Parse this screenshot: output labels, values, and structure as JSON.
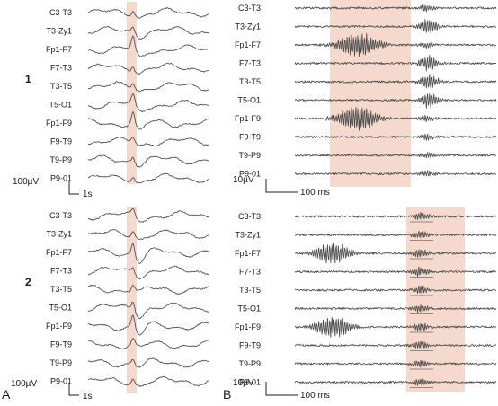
{
  "figure": {
    "panels": [
      {
        "id": "A",
        "label": "A",
        "rows": [
          {
            "id": "A1",
            "row_label": "1",
            "kind": "slow",
            "channels": [
              "C3-T3",
              "T3-Zy1",
              "Fp1-F7",
              "F7-T3",
              "T3-T5",
              "T5-O1",
              "Fp1-F9",
              "F9-T9",
              "T9-P9",
              "P9-01"
            ],
            "scale": {
              "amplitude": "100µV",
              "time": "1s"
            }
          },
          {
            "id": "A2",
            "row_label": "2",
            "kind": "slow",
            "channels": [
              "C3-T3",
              "T3-Zy1",
              "Fp1-F7",
              "F7-T3",
              "T3-T5",
              "T5-O1",
              "Fp1-F9",
              "F9-T9",
              "T9-P9",
              "P9-01"
            ],
            "scale": {
              "amplitude": "100µV",
              "time": "1s"
            }
          }
        ]
      },
      {
        "id": "B",
        "label": "B",
        "rows": [
          {
            "id": "B1",
            "row_label": "",
            "kind": "fast",
            "channels": [
              "C3-T3",
              "T3-Zy1",
              "Fp1-F7",
              "F7-T3",
              "T3-T5",
              "T5-O1",
              "Fp1-F9",
              "F9-T9",
              "T9-P9",
              "P9-01"
            ],
            "scale": {
              "amplitude": "10µV",
              "time": "100 ms"
            }
          },
          {
            "id": "B2",
            "row_label": "",
            "kind": "fast",
            "channels": [
              "C3-T3",
              "T3-Zy1",
              "Fp1-F7",
              "F7-T3",
              "T3-T5",
              "T5-O1",
              "Fp1-F9",
              "F9-T9",
              "T9-P9",
              "P9-01"
            ],
            "scale": {
              "amplitude": "10µV",
              "time": "100 ms"
            }
          }
        ]
      }
    ],
    "highlight_color": "#f2d2c3",
    "trace_color": "#4a4a4a"
  }
}
